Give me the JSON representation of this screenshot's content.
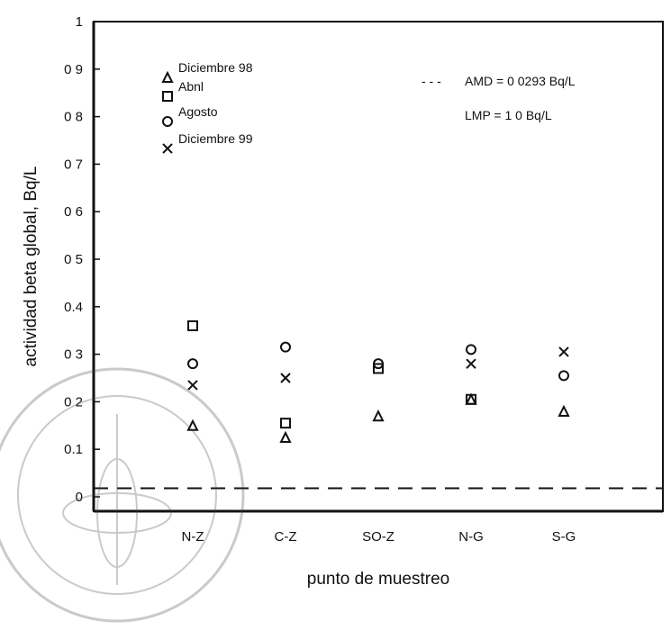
{
  "chart_data": {
    "type": "scatter",
    "categories": [
      "N-Z",
      "C-Z",
      "SO-Z",
      "N-G",
      "S-G"
    ],
    "xlabel": "punto de muestreo",
    "ylabel": "actividad beta global, Bq/L",
    "ylim": [
      0,
      1
    ],
    "yticks": [
      "0",
      "0.1",
      "0 2",
      "0 3",
      "0.4",
      "0 5",
      "0 6",
      "0 7",
      "0 8",
      "0 9",
      "1"
    ],
    "legend_position": "top-left",
    "grid": false,
    "series": [
      {
        "name": "Diciembre 98",
        "marker": "triangle",
        "values": [
          0.15,
          0.125,
          0.17,
          0.205,
          0.18
        ]
      },
      {
        "name": "Abnl",
        "marker": "square",
        "values": [
          0.36,
          0.155,
          0.27,
          0.205,
          null
        ]
      },
      {
        "name": "Agosto",
        "marker": "circle",
        "values": [
          0.28,
          0.315,
          0.28,
          0.31,
          0.255
        ]
      },
      {
        "name": "Diciembre 99",
        "marker": "x",
        "values": [
          0.235,
          0.25,
          null,
          0.28,
          0.305
        ]
      }
    ],
    "annotations": {
      "amd_line_value": 0.0293,
      "amd_label": "AMD = 0 0293 Bq/L",
      "amd_prefix": "- - -",
      "lmp_label": "LMP = 1 0 Bq/L"
    }
  }
}
